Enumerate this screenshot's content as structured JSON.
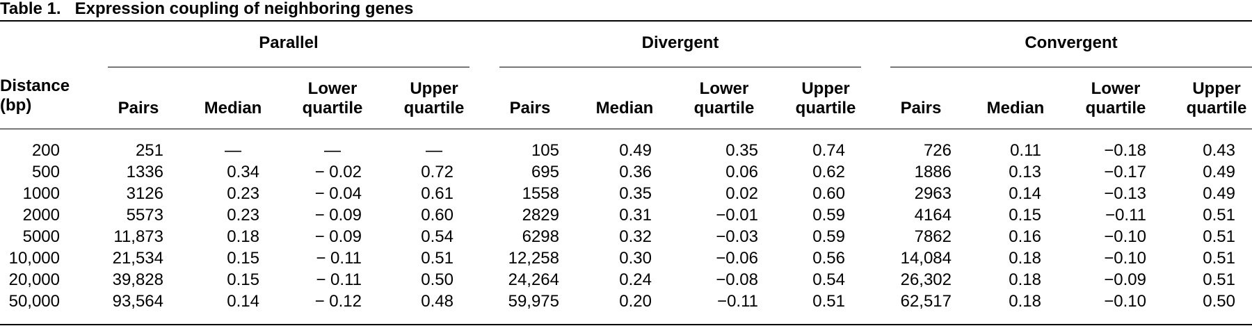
{
  "caption": {
    "label": "Table 1.",
    "title": "Expression coupling of neighboring genes"
  },
  "header": {
    "distance": "Distance\n(bp)",
    "groups": [
      "Parallel",
      "Divergent",
      "Convergent"
    ],
    "columns": [
      "Pairs",
      "Median",
      "Lower\nquartile",
      "Upper\nquartile"
    ]
  },
  "rows": [
    {
      "distance": "200",
      "parallel": [
        "251",
        "—",
        "—",
        "—"
      ],
      "divergent": [
        "105",
        "0.49",
        "0.35",
        "0.74"
      ],
      "convergent": [
        "726",
        "0.11",
        "−0.18",
        "0.43"
      ]
    },
    {
      "distance": "500",
      "parallel": [
        "1336",
        "0.34",
        "− 0.02",
        "0.72"
      ],
      "divergent": [
        "695",
        "0.36",
        "0.06",
        "0.62"
      ],
      "convergent": [
        "1886",
        "0.13",
        "−0.17",
        "0.49"
      ]
    },
    {
      "distance": "1000",
      "parallel": [
        "3126",
        "0.23",
        "− 0.04",
        "0.61"
      ],
      "divergent": [
        "1558",
        "0.35",
        "0.02",
        "0.60"
      ],
      "convergent": [
        "2963",
        "0.14",
        "−0.13",
        "0.49"
      ]
    },
    {
      "distance": "2000",
      "parallel": [
        "5573",
        "0.23",
        "− 0.09",
        "0.60"
      ],
      "divergent": [
        "2829",
        "0.31",
        "−0.01",
        "0.59"
      ],
      "convergent": [
        "4164",
        "0.15",
        "−0.11",
        "0.51"
      ]
    },
    {
      "distance": "5000",
      "parallel": [
        "11,873",
        "0.18",
        "− 0.09",
        "0.54"
      ],
      "divergent": [
        "6298",
        "0.32",
        "−0.03",
        "0.59"
      ],
      "convergent": [
        "7862",
        "0.16",
        "−0.10",
        "0.51"
      ]
    },
    {
      "distance": "10,000",
      "parallel": [
        "21,534",
        "0.15",
        "− 0.11",
        "0.51"
      ],
      "divergent": [
        "12,258",
        "0.30",
        "−0.06",
        "0.56"
      ],
      "convergent": [
        "14,084",
        "0.18",
        "−0.10",
        "0.51"
      ]
    },
    {
      "distance": "20,000",
      "parallel": [
        "39,828",
        "0.15",
        "− 0.11",
        "0.50"
      ],
      "divergent": [
        "24,264",
        "0.24",
        "−0.08",
        "0.54"
      ],
      "convergent": [
        "26,302",
        "0.18",
        "−0.09",
        "0.51"
      ]
    },
    {
      "distance": "50,000",
      "parallel": [
        "93,564",
        "0.14",
        "− 0.12",
        "0.48"
      ],
      "divergent": [
        "59,975",
        "0.20",
        "−0.11",
        "0.51"
      ],
      "convergent": [
        "62,517",
        "0.18",
        "−0.10",
        "0.50"
      ]
    }
  ]
}
